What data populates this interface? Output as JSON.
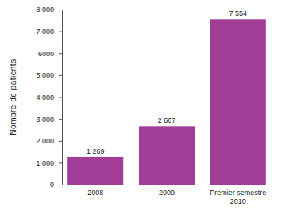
{
  "chart_data": {
    "type": "bar",
    "y_label": "Nombre de patients",
    "categories": [
      "2008",
      "2009",
      "Premier semestre 2010"
    ],
    "values": [
      1269,
      2667,
      7554
    ],
    "value_labels": [
      "1 269",
      "2 667",
      "7 554"
    ],
    "data_labels": true,
    "color": "#a23d97",
    "ylim": [
      0,
      8000
    ],
    "yticks": [
      0,
      {
        "value": 1000,
        "label": "1 000"
      },
      {
        "value": 2000,
        "label": "2 000"
      },
      {
        "value": 3000,
        "label": "3 000"
      },
      {
        "value": 4000,
        "label": "4 000"
      },
      {
        "value": 5000,
        "label": "5 000"
      },
      6000,
      {
        "value": 7000,
        "label": "7 000"
      },
      {
        "value": 8000,
        "label": "8 000"
      }
    ],
    "grid": false
  }
}
